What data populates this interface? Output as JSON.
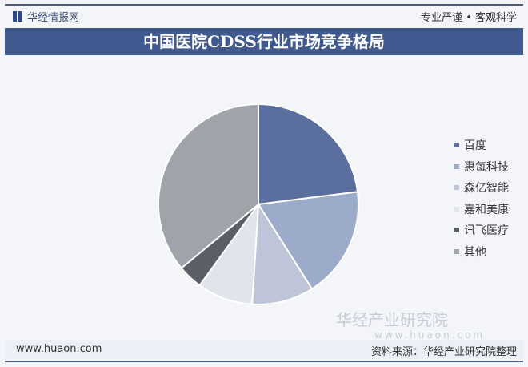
{
  "header": {
    "brand": "华经情报网",
    "motto": "专业严谨 • 客观科学"
  },
  "chart_data": {
    "type": "pie",
    "title": "中国医院CDSS行业市场竞争格局",
    "categories": [
      "百度",
      "惠每科技",
      "森亿智能",
      "嘉和美康",
      "讯飞医疗",
      "其他"
    ],
    "values": [
      23,
      18,
      10,
      9,
      4,
      36
    ],
    "colors": [
      "#5b6f9e",
      "#9dabca",
      "#bec5d8",
      "#e1e4ed",
      "#5a5e66",
      "#a0a3aa"
    ],
    "legend_position": "right"
  },
  "watermark": {
    "name": "华经产业研究院",
    "url": "www.huaon.com"
  },
  "footer": {
    "url": "www.huaon.com",
    "source": "资料来源：华经产业研究院整理"
  }
}
